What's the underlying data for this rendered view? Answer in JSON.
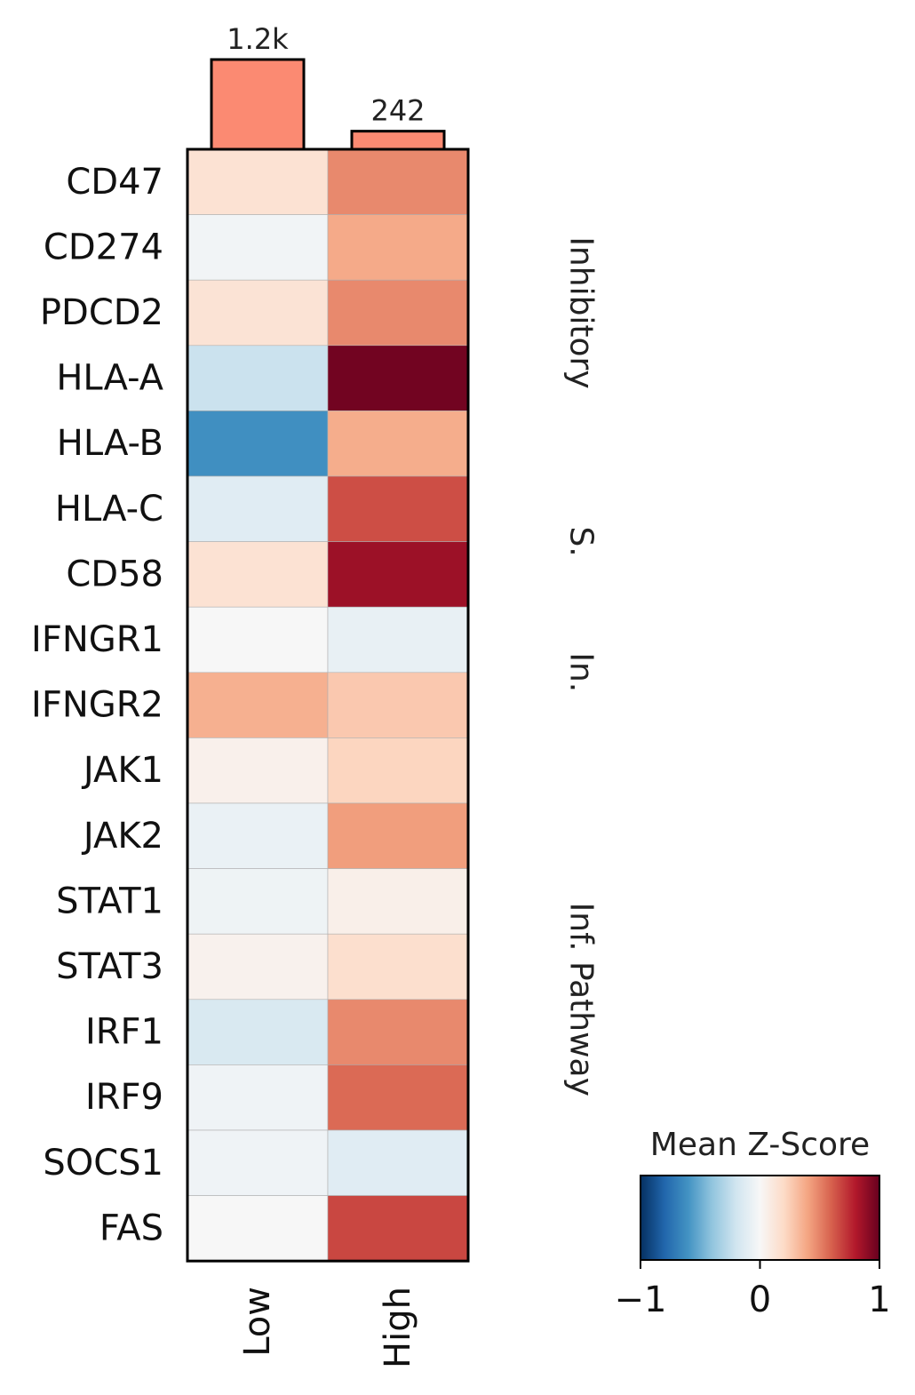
{
  "chart_data": {
    "type": "heatmap",
    "columns": [
      "Low",
      "High"
    ],
    "rows": [
      "CD47",
      "CD274",
      "PDCD2",
      "HLA-A",
      "HLA-B",
      "HLA-C",
      "CD58",
      "IFNGR1",
      "IFNGR2",
      "JAK1",
      "JAK2",
      "STAT1",
      "STAT3",
      "IRF1",
      "IRF9",
      "SOCS1",
      "FAS"
    ],
    "values": [
      [
        0.15,
        0.48
      ],
      [
        -0.03,
        0.38
      ],
      [
        0.14,
        0.48
      ],
      [
        -0.22,
        0.97
      ],
      [
        -0.62,
        0.37
      ],
      [
        -0.12,
        0.65
      ],
      [
        0.15,
        0.86
      ],
      [
        0.0,
        -0.08
      ],
      [
        0.36,
        0.27
      ],
      [
        0.05,
        0.22
      ],
      [
        -0.07,
        0.42
      ],
      [
        -0.05,
        0.06
      ],
      [
        0.04,
        0.17
      ],
      [
        -0.16,
        0.48
      ],
      [
        -0.04,
        0.57
      ],
      [
        -0.04,
        -0.12
      ],
      [
        0.0,
        0.67
      ]
    ],
    "column_counts": [
      1200,
      242
    ],
    "column_count_labels": [
      "1.2k",
      "242"
    ],
    "groups": [
      {
        "label": "Inhibitory",
        "start": 0,
        "end": 4
      },
      {
        "label": "S.",
        "start": 5,
        "end": 6
      },
      {
        "label": "In.",
        "start": 7,
        "end": 8
      },
      {
        "label": "Inf. Pathway",
        "start": 9,
        "end": 16
      }
    ],
    "colorbar": {
      "title": "Mean Z-Score",
      "range": [
        -1,
        1
      ],
      "ticks": [
        -1,
        0,
        1
      ],
      "tick_labels": [
        "−1",
        "0",
        "1"
      ],
      "colormap": "RdBu_r"
    },
    "bar_color": "#fb8a72"
  }
}
